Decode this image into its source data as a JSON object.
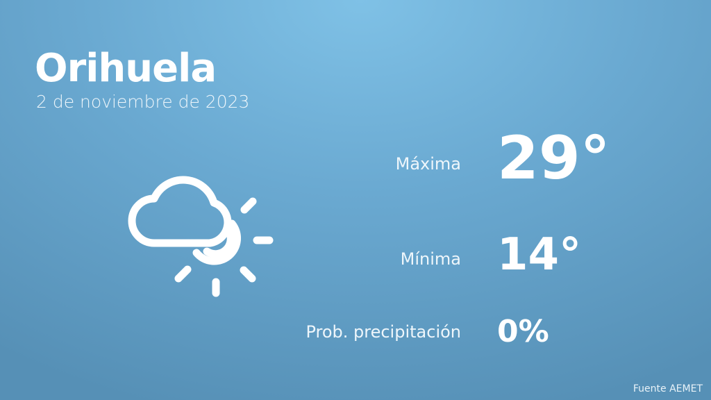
{
  "header": {
    "city": "Orihuela",
    "date": "2 de noviembre de 2023"
  },
  "weather": {
    "icon": "partly-cloudy-sun-icon",
    "max": {
      "label": "Máxima",
      "value": "29°"
    },
    "min": {
      "label": "Mínima",
      "value": "14°"
    },
    "precip": {
      "label": "Prob. precipitación",
      "value": "0%"
    }
  },
  "footer": {
    "source": "Fuente AEMET"
  }
}
